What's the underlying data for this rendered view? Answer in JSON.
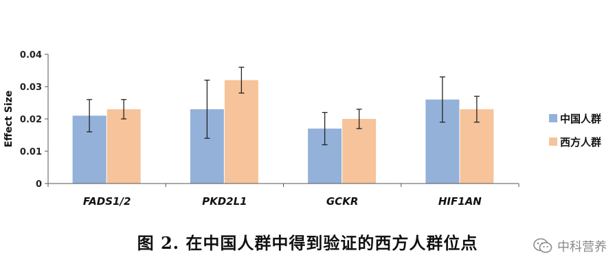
{
  "chart_data": {
    "type": "bar",
    "categories": [
      "FADS1/2",
      "PKD2L1",
      "GCKR",
      "HIF1AN"
    ],
    "series": [
      {
        "name": "中国人群",
        "color": "#93b1d9",
        "values": [
          0.021,
          0.023,
          0.017,
          0.026
        ],
        "err_low": [
          0.016,
          0.014,
          0.012,
          0.019
        ],
        "err_high": [
          0.026,
          0.032,
          0.022,
          0.033
        ]
      },
      {
        "name": "西方人群",
        "color": "#f6c39a",
        "values": [
          0.023,
          0.032,
          0.02,
          0.023
        ],
        "err_low": [
          0.02,
          0.028,
          0.017,
          0.019
        ],
        "err_high": [
          0.026,
          0.036,
          0.023,
          0.027
        ]
      }
    ],
    "ylabel": "Effect Size",
    "ylim": [
      0,
      0.04
    ],
    "yticks": [
      "0",
      "0.01",
      "0.02",
      "0.03",
      "0.04"
    ],
    "legend_position": "right",
    "grid": false,
    "error_bars": true
  },
  "caption": "图 2. 在中国人群中得到验证的西方人群位点",
  "watermark": {
    "icon": "wechat-icon",
    "text": "中科营养"
  }
}
